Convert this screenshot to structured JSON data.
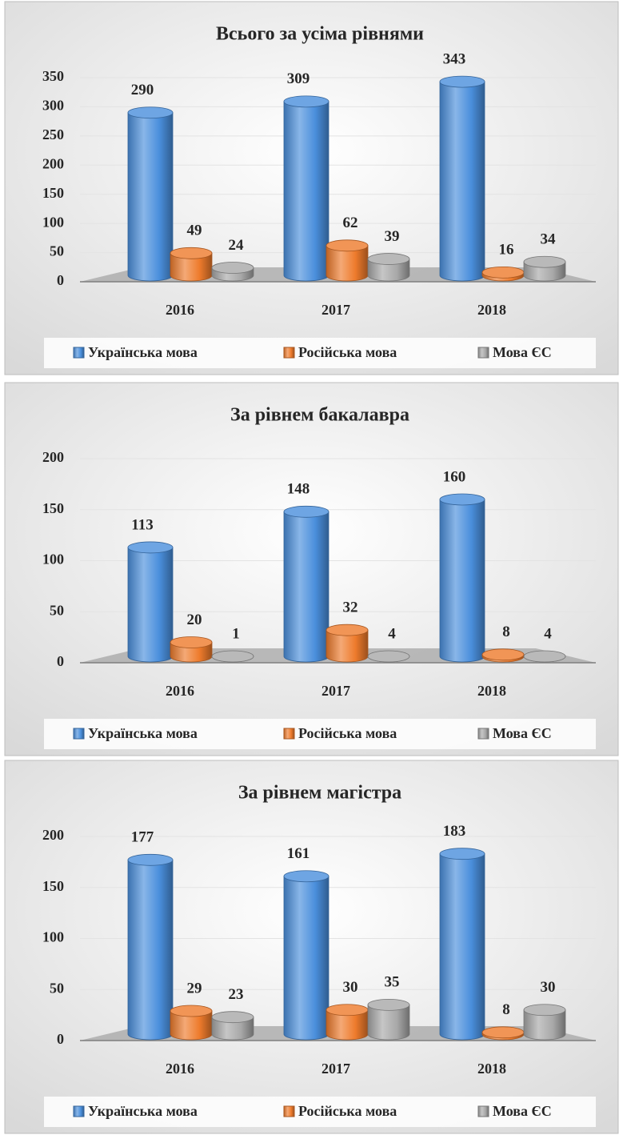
{
  "chart_data": [
    {
      "type": "bar",
      "title": "Всього за усіма рівнями",
      "categories": [
        "2016",
        "2017",
        "2018"
      ],
      "series": [
        {
          "name": "Українська мова",
          "color": "#4a8fdc",
          "values": [
            290,
            309,
            343
          ]
        },
        {
          "name": "Російська мова",
          "color": "#ee7b2c",
          "values": [
            49,
            62,
            16
          ]
        },
        {
          "name": "Мова ЄС",
          "color": "#a8a8a8",
          "values": [
            24,
            39,
            34
          ]
        }
      ],
      "ylim": [
        0,
        350
      ],
      "yticks": [
        0,
        50,
        100,
        150,
        200,
        250,
        300,
        350
      ],
      "grid": true,
      "legend": "bottom"
    },
    {
      "type": "bar",
      "title": "За рівнем бакалавра",
      "categories": [
        "2016",
        "2017",
        "2018"
      ],
      "series": [
        {
          "name": "Українська мова",
          "color": "#4a8fdc",
          "values": [
            113,
            148,
            160
          ]
        },
        {
          "name": "Російська мова",
          "color": "#ee7b2c",
          "values": [
            20,
            32,
            8
          ]
        },
        {
          "name": "Мова ЄС",
          "color": "#a8a8a8",
          "values": [
            1,
            4,
            4
          ]
        }
      ],
      "ylim": [
        0,
        200
      ],
      "yticks": [
        0,
        50,
        100,
        150,
        200
      ],
      "grid": true,
      "legend": "bottom"
    },
    {
      "type": "bar",
      "title": "За рівнем магістра",
      "categories": [
        "2016",
        "2017",
        "2018"
      ],
      "series": [
        {
          "name": "Українська мова",
          "color": "#4a8fdc",
          "values": [
            177,
            161,
            183
          ]
        },
        {
          "name": "Російська мова",
          "color": "#ee7b2c",
          "values": [
            29,
            30,
            8
          ]
        },
        {
          "name": "Мова ЄС",
          "color": "#a8a8a8",
          "values": [
            23,
            35,
            30
          ]
        }
      ],
      "ylim": [
        0,
        200
      ],
      "yticks": [
        0,
        50,
        100,
        150,
        200
      ],
      "grid": true,
      "legend": "bottom"
    }
  ]
}
